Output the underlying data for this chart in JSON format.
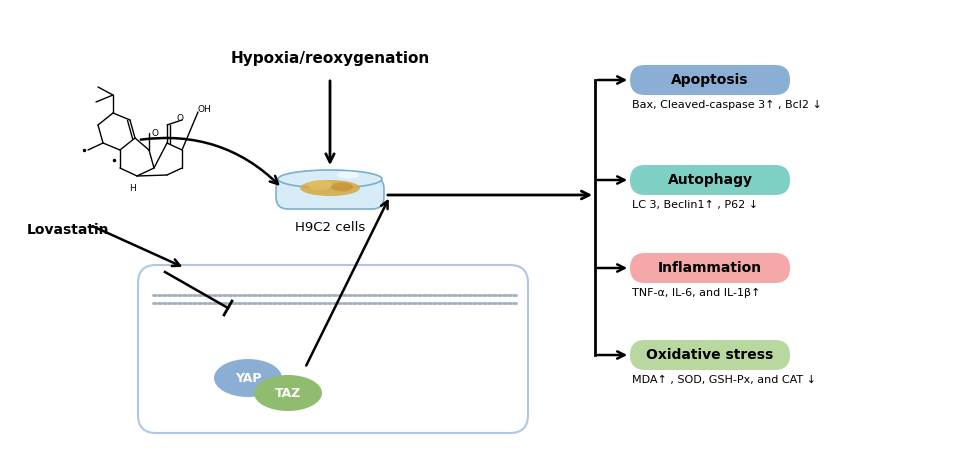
{
  "bg_color": "#ffffff",
  "box_color": "#aec6e8",
  "yap_color": "#8bafd4",
  "taz_color": "#8fbc6e",
  "apoptosis_color": "#8bafd4",
  "autophagy_color": "#7ecfc4",
  "inflammation_color": "#f4a8a8",
  "oxidative_color": "#b8d8a0",
  "labels": {
    "apoptosis": "Apoptosis",
    "autophagy": "Autophagy",
    "inflammation": "Inflammation",
    "oxidative": "Oxidative stress"
  },
  "sublabels": {
    "apoptosis": "Bax, Cleaved-caspase 3↑ , Bcl2 ↓",
    "autophagy": "LC 3, Beclin1↑ , P62 ↓",
    "inflammation": "TNF-α, IL-6, and IL-1β↑",
    "oxidative": "MDA↑ , SOD, GSH-Px, and CAT ↓"
  },
  "hypoxia_label": "Hypoxia/reoxygenation",
  "h9c2_label": "H9C2 cells",
  "lovastatin_label": "Lovastatin",
  "yap_label": "YAP",
  "taz_label": "TAZ"
}
